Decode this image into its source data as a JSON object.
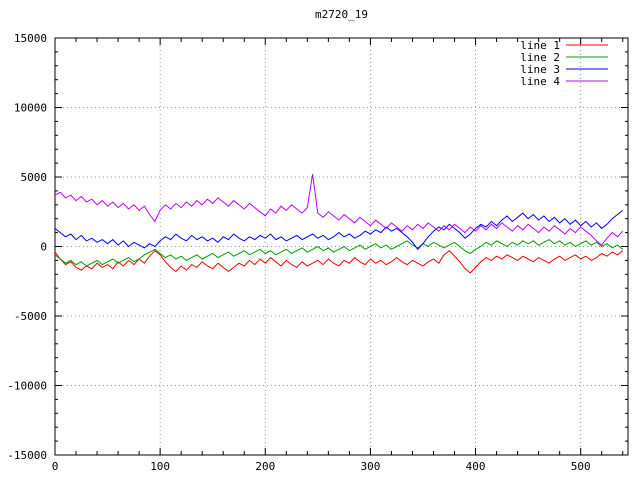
{
  "chart_data": {
    "type": "line",
    "title": "m2720_19",
    "xlabel": "",
    "ylabel": "",
    "xlim": [
      0,
      545
    ],
    "ylim": [
      -15000,
      15000
    ],
    "x_ticks": [
      0,
      100,
      200,
      300,
      400,
      500
    ],
    "y_ticks": [
      -15000,
      -10000,
      -5000,
      0,
      5000,
      10000,
      15000
    ],
    "x_minor_step": 20,
    "y_minor_step": 1000,
    "grid": true,
    "legend_position": "top-right",
    "x_start": 0,
    "x_step": 5,
    "series": [
      {
        "name": "line 1",
        "color": "#ff0000",
        "values": [
          -400,
          -900,
          -1300,
          -1100,
          -1500,
          -1700,
          -1400,
          -1600,
          -1200,
          -1500,
          -1300,
          -1600,
          -1100,
          -1400,
          -1000,
          -1300,
          -900,
          -1200,
          -700,
          -300,
          -600,
          -1100,
          -1500,
          -1800,
          -1400,
          -1700,
          -1300,
          -1500,
          -1100,
          -1400,
          -1600,
          -1200,
          -1500,
          -1800,
          -1500,
          -1200,
          -1400,
          -1000,
          -1300,
          -900,
          -1200,
          -800,
          -1100,
          -1400,
          -1000,
          -1300,
          -1500,
          -1100,
          -1400,
          -1200,
          -1000,
          -1300,
          -900,
          -1200,
          -1400,
          -1000,
          -1200,
          -800,
          -1100,
          -1300,
          -900,
          -1200,
          -1000,
          -1300,
          -1100,
          -800,
          -1100,
          -1300,
          -1000,
          -1200,
          -1400,
          -1100,
          -900,
          -1200,
          -600,
          -300,
          -700,
          -1100,
          -1600,
          -1900,
          -1500,
          -1100,
          -800,
          -1000,
          -700,
          -900,
          -600,
          -800,
          -1000,
          -700,
          -900,
          -1100,
          -800,
          -1000,
          -1200,
          -900,
          -700,
          -1000,
          -800,
          -600,
          -900,
          -700,
          -1000,
          -800,
          -500,
          -700,
          -400,
          -600,
          -300
        ]
      },
      {
        "name": "line 2",
        "color": "#00a000",
        "values": [
          -600,
          -900,
          -1200,
          -1000,
          -1300,
          -1100,
          -1400,
          -1200,
          -1000,
          -1300,
          -1100,
          -900,
          -1200,
          -1000,
          -800,
          -1100,
          -900,
          -600,
          -400,
          -200,
          -500,
          -800,
          -600,
          -900,
          -700,
          -1000,
          -800,
          -600,
          -900,
          -700,
          -500,
          -800,
          -600,
          -400,
          -700,
          -500,
          -300,
          -600,
          -400,
          -200,
          -500,
          -300,
          -600,
          -400,
          -200,
          -500,
          -300,
          -100,
          -400,
          -200,
          0,
          -300,
          -100,
          -400,
          -200,
          0,
          -300,
          -100,
          100,
          -200,
          0,
          200,
          -100,
          100,
          -200,
          0,
          200,
          400,
          100,
          -100,
          200,
          0,
          300,
          100,
          -100,
          100,
          300,
          0,
          -300,
          -500,
          -200,
          0,
          300,
          100,
          400,
          200,
          0,
          300,
          100,
          400,
          200,
          400,
          100,
          300,
          500,
          200,
          400,
          100,
          300,
          0,
          200,
          400,
          100,
          300,
          0,
          200,
          -100,
          100,
          -200
        ]
      },
      {
        "name": "line 3",
        "color": "#0000ff",
        "values": [
          1300,
          1000,
          700,
          900,
          500,
          800,
          400,
          600,
          300,
          500,
          200,
          500,
          100,
          400,
          0,
          300,
          100,
          -100,
          200,
          0,
          400,
          700,
          500,
          900,
          600,
          400,
          800,
          500,
          700,
          400,
          600,
          300,
          700,
          500,
          900,
          600,
          400,
          700,
          500,
          800,
          600,
          900,
          500,
          700,
          400,
          600,
          800,
          500,
          700,
          900,
          600,
          800,
          500,
          700,
          1000,
          700,
          900,
          600,
          800,
          1100,
          900,
          1200,
          1000,
          1400,
          1100,
          1300,
          1000,
          700,
          300,
          -200,
          200,
          700,
          1100,
          1400,
          1200,
          1600,
          1300,
          1000,
          600,
          900,
          1300,
          1600,
          1400,
          1800,
          1500,
          1900,
          2200,
          1800,
          2100,
          2400,
          2000,
          2300,
          1900,
          2200,
          1800,
          2100,
          1700,
          2000,
          1600,
          1900,
          1500,
          1800,
          1400,
          1700,
          1300,
          1600,
          2000,
          2300,
          2600
        ]
      },
      {
        "name": "line 4",
        "color": "#c000ff",
        "values": [
          3700,
          3900,
          3500,
          3700,
          3300,
          3600,
          3200,
          3400,
          3000,
          3300,
          2900,
          3200,
          2800,
          3100,
          2700,
          3000,
          2600,
          2900,
          2300,
          1800,
          2600,
          3000,
          2700,
          3100,
          2800,
          3200,
          2900,
          3300,
          3000,
          3400,
          3100,
          3500,
          3200,
          2900,
          3300,
          3000,
          2700,
          3100,
          2800,
          2500,
          2200,
          2700,
          2400,
          2900,
          2600,
          3000,
          2700,
          2400,
          2800,
          5200,
          2400,
          2100,
          2500,
          2200,
          1900,
          2300,
          2000,
          1700,
          2100,
          1800,
          1500,
          1900,
          1600,
          1300,
          1700,
          1400,
          1100,
          1500,
          1200,
          1600,
          1300,
          1700,
          1400,
          1100,
          1500,
          1200,
          1600,
          1300,
          1000,
          1400,
          1100,
          1500,
          1200,
          1600,
          1300,
          1700,
          1400,
          1100,
          1500,
          1200,
          1600,
          1300,
          1000,
          1400,
          1100,
          1500,
          1200,
          900,
          1300,
          1000,
          1400,
          1100,
          800,
          400,
          100,
          600,
          1000,
          700,
          1100
        ]
      }
    ],
    "legend": [
      "line 1",
      "line 2",
      "line 3",
      "line 4"
    ],
    "colors": {
      "grid": "#9a9a9a",
      "border": "#000000",
      "background": "#ffffff"
    }
  }
}
